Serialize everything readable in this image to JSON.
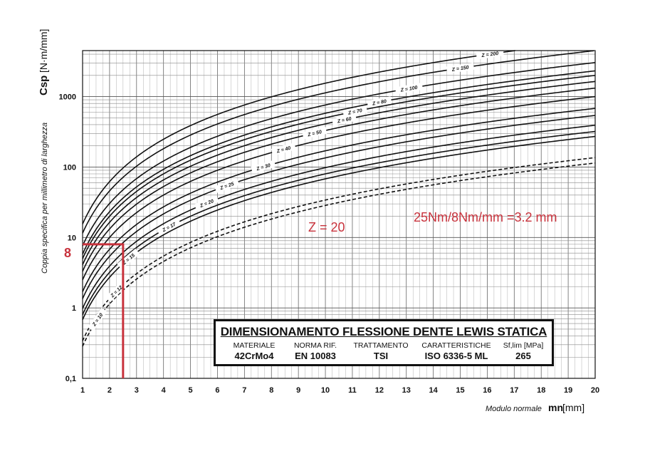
{
  "chart_data": {
    "type": "line",
    "x_axis": {
      "label": "Modulo normale",
      "symbol": "mn",
      "unit": "[mm]",
      "min": 1,
      "max": 20,
      "tick_labels": [
        "1",
        "2",
        "3",
        "4",
        "5",
        "6",
        "7",
        "8",
        "9",
        "10",
        "11",
        "12",
        "13",
        "14",
        "15",
        "16",
        "17",
        "18",
        "19",
        "20"
      ]
    },
    "y_axis": {
      "label": "Coppia specifica per millimetro di larghezza",
      "symbol": "Csp",
      "unit": "[N·m/mm]",
      "scale": "log",
      "min": 0.1,
      "max": 4500,
      "tick_values": [
        0.1,
        1,
        10,
        100,
        1000
      ],
      "tick_labels": [
        "0,1",
        "1",
        "10",
        "100",
        "1000"
      ]
    },
    "grid": true,
    "series": [
      {
        "name": "Z = 10",
        "y_at_1": 0.285,
        "y_at_20": 114,
        "dashed": true
      },
      {
        "name": "Z = 12",
        "y_at_1": 0.34,
        "y_at_20": 136,
        "dashed": true
      },
      {
        "name": "Z = 15",
        "y_at_1": 0.68,
        "y_at_20": 272
      },
      {
        "name": "Z = 17",
        "y_at_1": 0.8,
        "y_at_20": 320
      },
      {
        "name": "Z = 20",
        "y_at_1": 0.98,
        "y_at_20": 392
      },
      {
        "name": "Z = 25",
        "y_at_1": 1.35,
        "y_at_20": 540
      },
      {
        "name": "Z = 30",
        "y_at_1": 1.7,
        "y_at_20": 680
      },
      {
        "name": "Z = 40",
        "y_at_1": 2.5,
        "y_at_20": 1000
      },
      {
        "name": "Z = 50",
        "y_at_1": 3.3,
        "y_at_20": 1320
      },
      {
        "name": "Z = 60",
        "y_at_1": 4.1,
        "y_at_20": 1640
      },
      {
        "name": "Z = 70",
        "y_at_1": 5.0,
        "y_at_20": 2000
      },
      {
        "name": "Z = 80",
        "y_at_1": 5.8,
        "y_at_20": 2320
      },
      {
        "name": "Z = 100",
        "y_at_1": 7.6,
        "y_at_20": 3040
      },
      {
        "name": "Z = 150",
        "y_at_1": 11.5,
        "y_at_20": 4500
      },
      {
        "name": "Z = 200",
        "y_at_1": 15.5,
        "y_at_20": 6200
      }
    ],
    "labeled_series": [
      {
        "text": "Z = 10",
        "x": 1.55
      },
      {
        "text": "Z = 12",
        "x": 2.25
      },
      {
        "text": "Z = 15",
        "x": 2.7
      },
      {
        "text": "Z = 17",
        "x": 4.2
      },
      {
        "text": "Z = 20",
        "x": 5.6
      },
      {
        "text": "Z = 25",
        "x": 6.35
      },
      {
        "text": "Z = 30",
        "x": 7.7
      },
      {
        "text": "Z = 40",
        "x": 8.45
      },
      {
        "text": "Z = 50",
        "x": 9.6
      },
      {
        "text": "Z = 60",
        "x": 10.7
      },
      {
        "text": "Z = 70",
        "x": 11.1
      },
      {
        "text": "Z = 80",
        "x": 12.0
      },
      {
        "text": "Z = 100",
        "x": 13.1
      },
      {
        "text": "Z = 150",
        "x": 15.0
      },
      {
        "text": "Z = 200",
        "x": 16.1
      }
    ],
    "annotations": {
      "highlight_y": 8,
      "highlight_x": 2.5,
      "highlight_y_text": "8",
      "z_text": "Z = 20",
      "calc_text": "25Nm/8Nm/mm =3.2 mm",
      "color": "#c8323c"
    }
  },
  "info_box": {
    "title": "DIMENSIONAMENTO FLESSIONE DENTE LEWIS STATICA",
    "columns": [
      {
        "header": "MATERIALE",
        "value": "42CrMo4"
      },
      {
        "header": "NORMA RIF.",
        "value": "EN 10083"
      },
      {
        "header": "TRATTAMENTO",
        "value": "TSI"
      },
      {
        "header": "CARATTERISTICHE",
        "value": "ISO 6336-5 ML"
      },
      {
        "header": "Sf,lim [MPa]",
        "value": "265"
      }
    ]
  }
}
